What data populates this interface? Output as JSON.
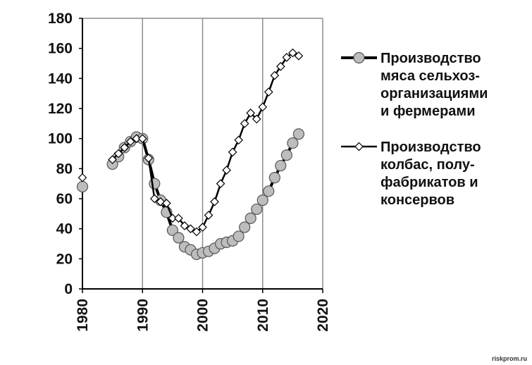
{
  "chart_data": {
    "type": "line",
    "title": "",
    "xlabel": "",
    "ylabel": "",
    "xlim": [
      1980,
      2020
    ],
    "ylim": [
      0,
      180
    ],
    "x_ticks": [
      "1980",
      "1990",
      "2000",
      "2010",
      "2020"
    ],
    "y_ticks": [
      "0",
      "20",
      "40",
      "60",
      "80",
      "100",
      "120",
      "140",
      "160",
      "180"
    ],
    "grid": "vertical",
    "legend_position": "right",
    "series": [
      {
        "name": "Производство мяса сельхоз-организациями и фермерами",
        "legend_lines": [
          "Производство",
          "мяса сельхоз-",
          "организациями",
          "и фермерами"
        ],
        "marker": "circle",
        "line_width": "thick",
        "marker_fill": "#bdbdbd",
        "points": [
          [
            1980,
            68
          ],
          [
            1985,
            83
          ],
          [
            1986,
            88
          ],
          [
            1987,
            94
          ],
          [
            1988,
            98
          ],
          [
            1989,
            101
          ],
          [
            1990,
            100
          ],
          [
            1991,
            86
          ],
          [
            1992,
            70
          ],
          [
            1993,
            59
          ],
          [
            1994,
            51
          ],
          [
            1995,
            39
          ],
          [
            1996,
            34
          ],
          [
            1997,
            28
          ],
          [
            1998,
            26
          ],
          [
            1999,
            23
          ],
          [
            2000,
            24
          ],
          [
            2001,
            25
          ],
          [
            2002,
            27
          ],
          [
            2003,
            30
          ],
          [
            2004,
            31
          ],
          [
            2005,
            32
          ],
          [
            2006,
            35
          ],
          [
            2007,
            41
          ],
          [
            2008,
            47
          ],
          [
            2009,
            53
          ],
          [
            2010,
            59
          ],
          [
            2011,
            65
          ],
          [
            2012,
            74
          ],
          [
            2013,
            82
          ],
          [
            2014,
            89
          ],
          [
            2015,
            97
          ],
          [
            2016,
            103
          ]
        ]
      },
      {
        "name": "Производство колбас, полу-фабрикатов и консервов",
        "legend_lines": [
          "Производство",
          "колбас, полу-",
          "фабрикатов и",
          "консервов"
        ],
        "marker": "diamond",
        "line_width": "thin",
        "marker_fill": "#ffffff",
        "points": [
          [
            1980,
            74
          ],
          [
            1985,
            86
          ],
          [
            1986,
            90
          ],
          [
            1987,
            94
          ],
          [
            1988,
            98
          ],
          [
            1989,
            100
          ],
          [
            1990,
            100
          ],
          [
            1991,
            87
          ],
          [
            1992,
            60
          ],
          [
            1993,
            58
          ],
          [
            1994,
            57
          ],
          [
            1995,
            47
          ],
          [
            1996,
            47
          ],
          [
            1997,
            42
          ],
          [
            1998,
            40
          ],
          [
            1999,
            38
          ],
          [
            2000,
            41
          ],
          [
            2001,
            49
          ],
          [
            2002,
            58
          ],
          [
            2003,
            70
          ],
          [
            2004,
            79
          ],
          [
            2005,
            91
          ],
          [
            2006,
            99
          ],
          [
            2007,
            110
          ],
          [
            2008,
            117
          ],
          [
            2009,
            113
          ],
          [
            2010,
            121
          ],
          [
            2011,
            131
          ],
          [
            2012,
            142
          ],
          [
            2013,
            148
          ],
          [
            2014,
            154
          ],
          [
            2015,
            157
          ],
          [
            2016,
            155
          ]
        ]
      }
    ]
  },
  "watermark": "riskprom.ru"
}
